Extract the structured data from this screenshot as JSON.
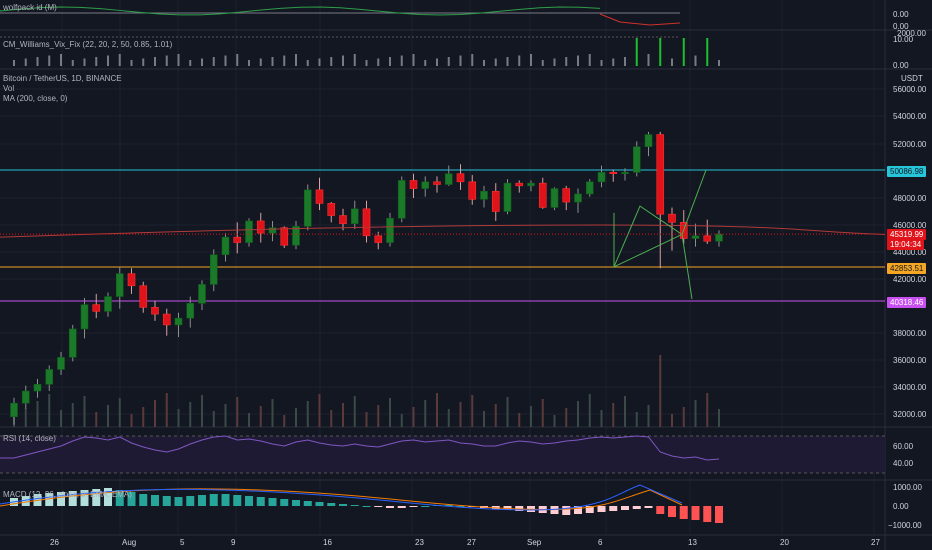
{
  "panes": {
    "wolfpack": {
      "title": "wolfpack id (M)",
      "ticks": [
        "0.00",
        "0.00"
      ]
    },
    "vix": {
      "title": "CM_Williams_Vix_Fix (22, 20, 2, 50, 0.85, 1.01)",
      "ticks": [
        "2000.00",
        "10.00",
        "0.00"
      ]
    },
    "main": {
      "symbol": "Bitcoin / TetherUS, 1D, BINANCE",
      "vol_label": "Vol",
      "ma_label": "MA (200, close, 0)",
      "currency": "USDT",
      "ticks": [
        "56000.00",
        "54000.00",
        "52000.00",
        "48000.00",
        "46000.00",
        "44000.00",
        "42000.00",
        "38000.00",
        "36000.00",
        "34000.00",
        "32000.00"
      ]
    },
    "rsi": {
      "title": "RSI (14, close)",
      "ticks": [
        "60.00",
        "40.00"
      ]
    },
    "macd": {
      "title": "MACD (12, 26, close, 9, EMA, EMA)",
      "ticks": [
        "1000.00",
        "0.00",
        "−1000.00"
      ]
    }
  },
  "price_badges": {
    "cyan_level": "50086.98",
    "current_price": "45319.99",
    "countdown": "19:04:34",
    "orange_level": "42853.51",
    "purple_level": "40318.46"
  },
  "date_axis": [
    "26",
    "Aug",
    "5",
    "9",
    "16",
    "23",
    "27",
    "Sep",
    "6",
    "13",
    "20",
    "27"
  ],
  "colors": {
    "up": "#26a69a",
    "down": "#ef5350",
    "candle_up": "#1b7a2a",
    "candle_down": "#e0131a",
    "cyan_line": "#26c6da",
    "orange_line": "#f5a623",
    "purple_line": "#c850f0",
    "ma_line": "#b03a3a"
  },
  "chart_data": {
    "type": "candlestick",
    "series_label": "Bitcoin / TetherUS, 1D, BINANCE",
    "ylim": [
      30500,
      57500
    ],
    "ohlc": [
      [
        31800,
        33200,
        31200,
        32800
      ],
      [
        32800,
        34100,
        32400,
        33700
      ],
      [
        33700,
        34600,
        33200,
        34200
      ],
      [
        34200,
        35600,
        33700,
        35300
      ],
      [
        35300,
        36600,
        34900,
        36200
      ],
      [
        36200,
        38600,
        35900,
        38300
      ],
      [
        38300,
        40600,
        37600,
        40100
      ],
      [
        40100,
        40900,
        39100,
        39600
      ],
      [
        39600,
        41000,
        39200,
        40700
      ],
      [
        40700,
        42900,
        39800,
        42400
      ],
      [
        42400,
        42800,
        40900,
        41500
      ],
      [
        41500,
        41800,
        39500,
        39900
      ],
      [
        39900,
        40400,
        38900,
        39400
      ],
      [
        39400,
        39800,
        37800,
        38600
      ],
      [
        38600,
        39500,
        37700,
        39100
      ],
      [
        39100,
        40700,
        38400,
        40200
      ],
      [
        40200,
        41900,
        39700,
        41600
      ],
      [
        41600,
        44200,
        41100,
        43800
      ],
      [
        43800,
        45400,
        43300,
        45100
      ],
      [
        45100,
        46200,
        43900,
        44700
      ],
      [
        44700,
        46500,
        44400,
        46300
      ],
      [
        46300,
        46900,
        44700,
        45400
      ],
      [
        45400,
        46300,
        44800,
        45800
      ],
      [
        45800,
        45900,
        44300,
        44500
      ],
      [
        44500,
        46300,
        44200,
        45900
      ],
      [
        45900,
        49000,
        45600,
        48600
      ],
      [
        48600,
        49500,
        47100,
        47600
      ],
      [
        47600,
        47700,
        46200,
        46700
      ],
      [
        46700,
        47200,
        45600,
        46100
      ],
      [
        46100,
        47800,
        45700,
        47200
      ],
      [
        47200,
        47800,
        44700,
        45200
      ],
      [
        45200,
        45500,
        44200,
        44700
      ],
      [
        44700,
        46900,
        44400,
        46500
      ],
      [
        46500,
        49600,
        46200,
        49300
      ],
      [
        49300,
        49800,
        48000,
        48700
      ],
      [
        48700,
        49600,
        48100,
        49200
      ],
      [
        49200,
        49600,
        48400,
        49000
      ],
      [
        49000,
        50400,
        48900,
        49800
      ],
      [
        49800,
        50500,
        48600,
        49200
      ],
      [
        49200,
        49700,
        47500,
        47900
      ],
      [
        47900,
        48900,
        47300,
        48500
      ],
      [
        48500,
        49100,
        46300,
        47000
      ],
      [
        47000,
        49400,
        46800,
        49100
      ],
      [
        49100,
        49300,
        48400,
        48900
      ],
      [
        48900,
        49300,
        48500,
        49100
      ],
      [
        49100,
        49500,
        47200,
        47300
      ],
      [
        47300,
        48800,
        47100,
        48700
      ],
      [
        48700,
        48900,
        47100,
        47700
      ],
      [
        47700,
        48700,
        46900,
        48300
      ],
      [
        48300,
        49400,
        48100,
        49200
      ],
      [
        49200,
        50400,
        48800,
        49900
      ],
      [
        49900,
        50100,
        49200,
        49800
      ],
      [
        49800,
        50200,
        49300,
        49900
      ],
      [
        49900,
        52200,
        49600,
        51800
      ],
      [
        51800,
        52900,
        51100,
        52700
      ],
      [
        52700,
        52900,
        42800,
        46800
      ],
      [
        46800,
        47300,
        44100,
        46200
      ],
      [
        46200,
        47100,
        44600,
        45000
      ],
      [
        45000,
        46100,
        44400,
        45200
      ],
      [
        45200,
        46400,
        44600,
        44800
      ],
      [
        44800,
        45600,
        44400,
        45320
      ]
    ],
    "ma200": [
      45200,
      45400,
      45600,
      45800,
      45700
    ]
  }
}
